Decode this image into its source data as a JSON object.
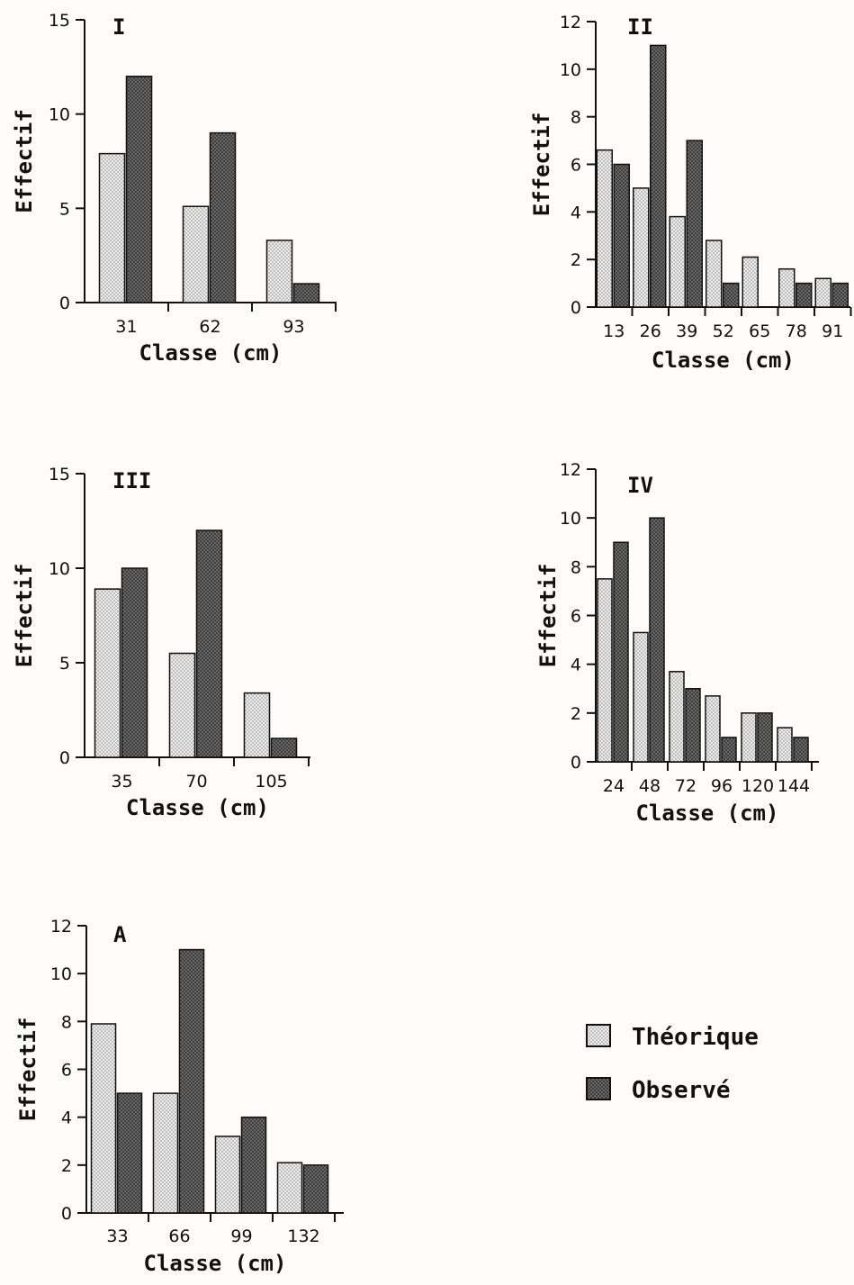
{
  "colors": {
    "theorique": "#d4d4d4",
    "observe": "#4f4f4f",
    "axis": "#111111"
  },
  "legend": {
    "items": [
      {
        "label": "Théorique",
        "key": "theorique"
      },
      {
        "label": "Observé",
        "key": "observe"
      }
    ]
  },
  "chart_data": [
    {
      "type": "bar",
      "panel": "I",
      "xlabel": "Classe (cm)",
      "ylabel": "Effectif",
      "ylim": [
        0,
        15
      ],
      "yticks": [
        "0",
        "5",
        "10",
        "15"
      ],
      "categories": [
        "31",
        "62",
        "93"
      ],
      "series": [
        {
          "name": "Théorique",
          "key": "theorique",
          "values": [
            7.9,
            5.1,
            3.3
          ]
        },
        {
          "name": "Observé",
          "key": "observe",
          "values": [
            12,
            9,
            1
          ]
        }
      ]
    },
    {
      "type": "bar",
      "panel": "II",
      "xlabel": "Classe (cm)",
      "ylabel": "Effectif",
      "ylim": [
        0,
        12
      ],
      "yticks": [
        "0",
        "2",
        "4",
        "6",
        "8",
        "10",
        "12"
      ],
      "categories": [
        "13",
        "26",
        "39",
        "52",
        "65",
        "78",
        "91"
      ],
      "series": [
        {
          "name": "Théorique",
          "key": "theorique",
          "values": [
            6.6,
            5,
            3.8,
            2.8,
            2.1,
            1.6,
            1.2
          ]
        },
        {
          "name": "Observé",
          "key": "observe",
          "values": [
            6,
            11,
            7,
            1,
            0,
            1,
            1
          ]
        }
      ]
    },
    {
      "type": "bar",
      "panel": "III",
      "xlabel": "Classe (cm)",
      "ylabel": "Effectif",
      "ylim": [
        0,
        15
      ],
      "yticks": [
        "0",
        "5",
        "10",
        "15"
      ],
      "categories": [
        "35",
        "70",
        "105"
      ],
      "series": [
        {
          "name": "Théorique",
          "key": "theorique",
          "values": [
            8.9,
            5.5,
            3.4
          ]
        },
        {
          "name": "Observé",
          "key": "observe",
          "values": [
            10,
            12,
            1
          ]
        }
      ]
    },
    {
      "type": "bar",
      "panel": "IV",
      "xlabel": "Classe (cm)",
      "ylabel": "Effectif",
      "ylim": [
        0,
        12
      ],
      "yticks": [
        "0",
        "2",
        "4",
        "6",
        "8",
        "10",
        "12"
      ],
      "categories": [
        "24",
        "48",
        "72",
        "96",
        "120",
        "144"
      ],
      "series": [
        {
          "name": "Théorique",
          "key": "theorique",
          "values": [
            7.5,
            5.3,
            3.7,
            2.7,
            2,
            1.4
          ]
        },
        {
          "name": "Observé",
          "key": "observe",
          "values": [
            9,
            10,
            3,
            1,
            2,
            1
          ]
        }
      ]
    },
    {
      "type": "bar",
      "panel": "A",
      "xlabel": "Classe (cm)",
      "ylabel": "Effectif",
      "ylim": [
        0,
        12
      ],
      "yticks": [
        "0",
        "2",
        "4",
        "6",
        "8",
        "10",
        "12"
      ],
      "categories": [
        "33",
        "66",
        "99",
        "132"
      ],
      "series": [
        {
          "name": "Théorique",
          "key": "theorique",
          "values": [
            7.9,
            5,
            3.2,
            2.1
          ]
        },
        {
          "name": "Observé",
          "key": "observe",
          "values": [
            5,
            11,
            4,
            2
          ]
        }
      ]
    }
  ]
}
